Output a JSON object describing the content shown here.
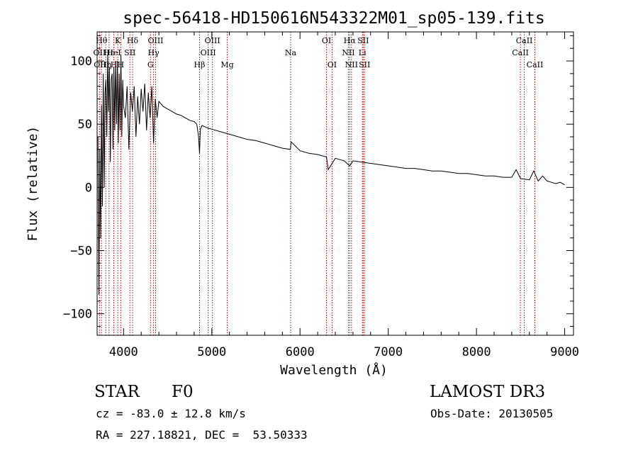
{
  "chart_data": {
    "type": "line",
    "title": "spec-56418-HD150616N543322M01_sp05-139.fits",
    "xlabel": "Wavelength (Å)",
    "ylabel": "Flux (relative)",
    "xlim": [
      3700,
      9100
    ],
    "ylim": [
      -117,
      123
    ],
    "x_ticks": [
      4000,
      5000,
      6000,
      7000,
      8000,
      9000
    ],
    "y_ticks": [
      -100,
      -50,
      0,
      50,
      100
    ],
    "line_color": "#c00000",
    "series_color": "#000000",
    "series": [
      {
        "name": "flux",
        "x": [
          3710,
          3720,
          3730,
          3740,
          3750,
          3760,
          3770,
          3780,
          3790,
          3800,
          3810,
          3820,
          3830,
          3840,
          3850,
          3860,
          3870,
          3880,
          3890,
          3900,
          3910,
          3920,
          3930,
          3940,
          3950,
          3960,
          3970,
          3980,
          3990,
          4000,
          4020,
          4040,
          4060,
          4080,
          4100,
          4120,
          4140,
          4160,
          4180,
          4200,
          4220,
          4240,
          4260,
          4280,
          4300,
          4320,
          4340,
          4360,
          4380,
          4400,
          4450,
          4500,
          4550,
          4600,
          4650,
          4700,
          4750,
          4800,
          4830,
          4850,
          4861,
          4870,
          4890,
          4920,
          4950,
          5000,
          5100,
          5200,
          5300,
          5400,
          5500,
          5600,
          5700,
          5800,
          5890,
          5900,
          6000,
          6100,
          6200,
          6300,
          6320,
          6400,
          6500,
          6563,
          6600,
          6700,
          6800,
          6900,
          7000,
          7100,
          7200,
          7300,
          7400,
          7500,
          7600,
          7700,
          7800,
          7900,
          8000,
          8100,
          8200,
          8300,
          8400,
          8450,
          8500,
          8600,
          8650,
          8700,
          8750,
          8800,
          8850,
          8900,
          8950,
          9000
        ],
        "y": [
          40,
          -85,
          30,
          -40,
          65,
          -15,
          90,
          0,
          75,
          85,
          40,
          105,
          60,
          95,
          20,
          85,
          90,
          30,
          95,
          45,
          100,
          50,
          100,
          35,
          90,
          45,
          105,
          40,
          85,
          65,
          55,
          80,
          30,
          75,
          60,
          80,
          40,
          72,
          50,
          78,
          60,
          82,
          45,
          75,
          55,
          80,
          35,
          70,
          55,
          68,
          64,
          62,
          60,
          58,
          57,
          55,
          53,
          52,
          50,
          40,
          27,
          46,
          49,
          48,
          47,
          46,
          44,
          42,
          40,
          38,
          37,
          35,
          33,
          31,
          30,
          36,
          29,
          27,
          26,
          24,
          14,
          23,
          21,
          17,
          21,
          20,
          19,
          18,
          17,
          16,
          15,
          15,
          14,
          13,
          13,
          12,
          11,
          11,
          10,
          9,
          9,
          8,
          8,
          14,
          7,
          6,
          13,
          5,
          9,
          5,
          4,
          3,
          4,
          2
        ]
      }
    ],
    "lines": [
      {
        "x": 3727,
        "labels": [
          "OII"
        ],
        "rows": [
          1
        ]
      },
      {
        "x": 3750,
        "labels": [
          "Hθ",
          "OIII"
        ],
        "rows": [
          0,
          2
        ]
      },
      {
        "x": 3798,
        "labels": [
          "Hη"
        ],
        "rows": [
          2
        ]
      },
      {
        "x": 3835,
        "labels": [
          "Hε"
        ],
        "rows": [
          1
        ]
      },
      {
        "x": 3889,
        "labels": [
          "HeI",
          "H"
        ],
        "rows": [
          1,
          2
        ]
      },
      {
        "x": 3934,
        "labels": [
          "K"
        ],
        "rows": [
          0
        ]
      },
      {
        "x": 3968,
        "labels": [
          "H"
        ],
        "rows": [
          2
        ]
      },
      {
        "x": 4072,
        "labels": [
          "SII"
        ],
        "rows": [
          1
        ]
      },
      {
        "x": 4102,
        "labels": [
          "Hδ"
        ],
        "rows": [
          0
        ]
      },
      {
        "x": 4305,
        "labels": [
          "G"
        ],
        "rows": [
          2
        ]
      },
      {
        "x": 4340,
        "labels": [
          "Hγ"
        ],
        "rows": [
          1
        ]
      },
      {
        "x": 4363,
        "labels": [
          "OIII"
        ],
        "rows": [
          0
        ]
      },
      {
        "x": 4861,
        "labels": [
          "Hβ"
        ],
        "rows": [
          2
        ]
      },
      {
        "x": 4959,
        "labels": [
          "OIII"
        ],
        "rows": [
          1
        ]
      },
      {
        "x": 5007,
        "labels": [
          "OIII"
        ],
        "rows": [
          0
        ]
      },
      {
        "x": 5175,
        "labels": [
          "Mg"
        ],
        "rows": [
          2
        ]
      },
      {
        "x": 5893,
        "labels": [
          "Na"
        ],
        "rows": [
          1
        ]
      },
      {
        "x": 6300,
        "labels": [
          "OI"
        ],
        "rows": [
          0
        ]
      },
      {
        "x": 6363,
        "labels": [
          "OI"
        ],
        "rows": [
          2
        ]
      },
      {
        "x": 6548,
        "labels": [
          "NII"
        ],
        "rows": [
          1
        ]
      },
      {
        "x": 6563,
        "labels": [
          "Hα"
        ],
        "rows": [
          0
        ]
      },
      {
        "x": 6583,
        "labels": [
          "NII"
        ],
        "rows": [
          2
        ]
      },
      {
        "x": 6707,
        "labels": [
          "Li"
        ],
        "rows": [
          1
        ]
      },
      {
        "x": 6716,
        "labels": [
          "SII"
        ],
        "rows": [
          0
        ]
      },
      {
        "x": 6731,
        "labels": [
          "SII"
        ],
        "rows": [
          2
        ]
      },
      {
        "x": 8498,
        "labels": [
          "CaII"
        ],
        "rows": [
          1
        ]
      },
      {
        "x": 8542,
        "labels": [
          "CaII"
        ],
        "rows": [
          0
        ]
      },
      {
        "x": 8662,
        "labels": [
          "CaII"
        ],
        "rows": [
          2
        ]
      }
    ]
  },
  "info": {
    "class_label": "STAR",
    "subclass": "F0",
    "survey": "LAMOST DR3",
    "cz": "cz = -83.0 ± 12.8 km/s",
    "obs_date": "Obs-Date: 20130505",
    "coords": "RA = 227.18821, DEC =  53.50333"
  }
}
